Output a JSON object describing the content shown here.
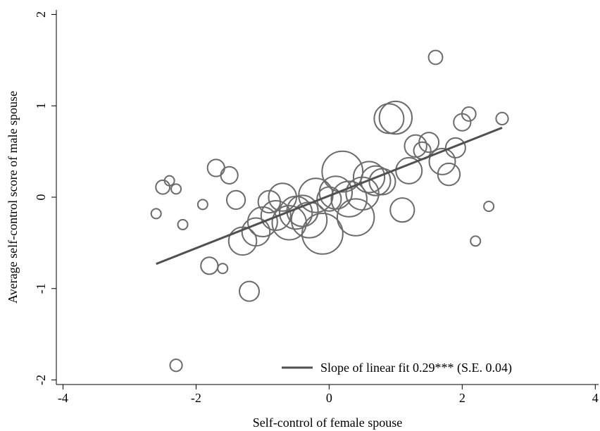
{
  "chart_data": {
    "type": "scatter",
    "title": "",
    "xlabel": "Self-control of female spouse",
    "ylabel": "Average self-control score of male spouse",
    "xlim": [
      -4.1,
      4.05
    ],
    "ylim": [
      -2.05,
      2.05
    ],
    "xticks": [
      -4,
      -2,
      0,
      2,
      4
    ],
    "yticks": [
      -2,
      -1,
      0,
      1,
      2
    ],
    "yticks_rotated": true,
    "grid": false,
    "marker": "hollow-circle",
    "marker_size_encodes": "relative weight (number of observations)",
    "colors": {
      "markers": "#6b6b6b",
      "fit_line": "#505050",
      "axes": "#000000"
    },
    "points": [
      {
        "x": -2.6,
        "y": -0.18,
        "s": 1
      },
      {
        "x": -2.5,
        "y": 0.11,
        "s": 2
      },
      {
        "x": -2.4,
        "y": 0.18,
        "s": 1
      },
      {
        "x": -2.3,
        "y": 0.09,
        "s": 1
      },
      {
        "x": -2.3,
        "y": -1.84,
        "s": 1.5
      },
      {
        "x": -2.2,
        "y": -0.3,
        "s": 1
      },
      {
        "x": -1.9,
        "y": -0.08,
        "s": 1
      },
      {
        "x": -1.8,
        "y": -0.75,
        "s": 3
      },
      {
        "x": -1.7,
        "y": 0.32,
        "s": 3
      },
      {
        "x": -1.6,
        "y": -0.78,
        "s": 1
      },
      {
        "x": -1.5,
        "y": 0.24,
        "s": 3
      },
      {
        "x": -1.4,
        "y": -0.03,
        "s": 3.5
      },
      {
        "x": -1.3,
        "y": -0.48,
        "s": 8
      },
      {
        "x": -1.2,
        "y": -1.03,
        "s": 4
      },
      {
        "x": -1.1,
        "y": -0.38,
        "s": 8
      },
      {
        "x": -1.0,
        "y": -0.27,
        "s": 9
      },
      {
        "x": -0.9,
        "y": -0.05,
        "s": 5
      },
      {
        "x": -0.8,
        "y": -0.2,
        "s": 9
      },
      {
        "x": -0.7,
        "y": 0.0,
        "s": 8
      },
      {
        "x": -0.6,
        "y": -0.28,
        "s": 12
      },
      {
        "x": -0.5,
        "y": -0.17,
        "s": 11
      },
      {
        "x": -0.4,
        "y": -0.15,
        "s": 10
      },
      {
        "x": -0.3,
        "y": -0.25,
        "s": 13
      },
      {
        "x": -0.2,
        "y": 0.02,
        "s": 12
      },
      {
        "x": -0.1,
        "y": -0.4,
        "s": 17
      },
      {
        "x": 0.0,
        "y": -0.02,
        "s": 6
      },
      {
        "x": 0.1,
        "y": 0.05,
        "s": 11
      },
      {
        "x": 0.2,
        "y": 0.28,
        "s": 17
      },
      {
        "x": 0.3,
        "y": -0.02,
        "s": 13
      },
      {
        "x": 0.4,
        "y": -0.22,
        "s": 14
      },
      {
        "x": 0.5,
        "y": 0.04,
        "s": 11
      },
      {
        "x": 0.6,
        "y": 0.22,
        "s": 10
      },
      {
        "x": 0.7,
        "y": 0.18,
        "s": 9
      },
      {
        "x": 0.8,
        "y": 0.17,
        "s": 7
      },
      {
        "x": 0.9,
        "y": 0.86,
        "s": 9
      },
      {
        "x": 1.0,
        "y": 0.87,
        "s": 11
      },
      {
        "x": 1.1,
        "y": -0.14,
        "s": 6
      },
      {
        "x": 1.2,
        "y": 0.29,
        "s": 7
      },
      {
        "x": 1.3,
        "y": 0.56,
        "s": 5
      },
      {
        "x": 1.4,
        "y": 0.51,
        "s": 3
      },
      {
        "x": 1.5,
        "y": 0.6,
        "s": 4
      },
      {
        "x": 1.6,
        "y": 1.53,
        "s": 2
      },
      {
        "x": 1.7,
        "y": 0.39,
        "s": 7
      },
      {
        "x": 1.8,
        "y": 0.25,
        "s": 5
      },
      {
        "x": 1.9,
        "y": 0.54,
        "s": 4
      },
      {
        "x": 2.0,
        "y": 0.82,
        "s": 3
      },
      {
        "x": 2.1,
        "y": 0.91,
        "s": 2
      },
      {
        "x": 2.2,
        "y": -0.48,
        "s": 1
      },
      {
        "x": 2.4,
        "y": -0.1,
        "s": 1
      },
      {
        "x": 2.6,
        "y": 0.86,
        "s": 1.5
      }
    ],
    "fit_line": {
      "x1": -2.6,
      "y1": -0.73,
      "x2": 2.6,
      "y2": 0.76
    },
    "legend": {
      "entries": [
        "Slope of linear fit 0.29*** (S.E. 0.04)"
      ],
      "placement": "bottom-right"
    }
  }
}
